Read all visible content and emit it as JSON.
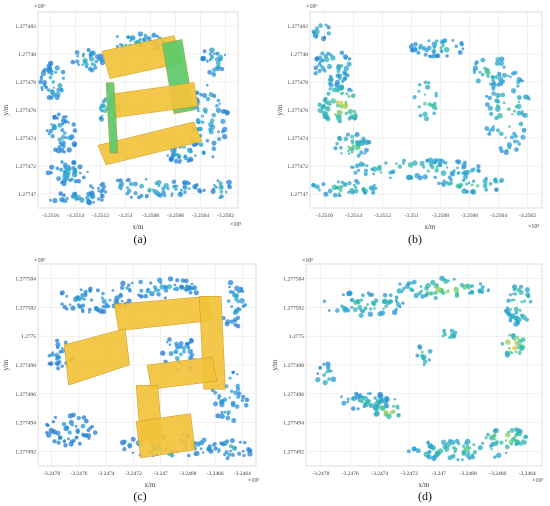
{
  "figure": {
    "panels": [
      {
        "caption": "(a)",
        "x_exp": "×10⁵",
        "y_exp": "×10⁶"
      },
      {
        "caption": "(b)",
        "x_exp": "×10⁵",
        "y_exp": "×10⁶"
      },
      {
        "caption": "(c)",
        "x_exp": "×10⁵",
        "y_exp": "×10⁶"
      },
      {
        "caption": "(d)",
        "x_exp": "×10⁵",
        "y_exp": "×10⁶"
      }
    ],
    "xlabel": "x/m",
    "ylabel": "y/m",
    "colors": {
      "low": "#2060d8",
      "mid": "#30c0a0",
      "high": "#f0c030",
      "roof": "#f2c23a",
      "wall": "#5cc96a"
    }
  },
  "chart_data": [
    {
      "type": "scatter",
      "panel": "(a)",
      "xlabel": "x/m",
      "ylabel": "y/m",
      "x_multiplier": "×10⁵",
      "y_multiplier": "×10⁶",
      "xticks": [
        "-3.2516",
        "-3.2514",
        "-3.2512",
        "-3.251",
        "-3.2508",
        "-3.2506",
        "-3.2504",
        "-3.2502"
      ],
      "yticks": [
        "1.277482",
        "1.27748",
        "1.277478",
        "1.277476",
        "1.277474",
        "1.277472",
        "1.27747"
      ],
      "xlim": [
        -3.25165,
        -3.25015
      ],
      "ylim": [
        1.2774685,
        1.2774825
      ],
      "grid": true,
      "content": "building point cloud with roofs"
    },
    {
      "type": "scatter",
      "panel": "(b)",
      "xlabel": "x/m",
      "ylabel": "y/m",
      "x_multiplier": "×10⁵",
      "y_multiplier": "×10⁶",
      "xticks": [
        "-3.2516",
        "-3.2514",
        "-3.2512",
        "-3.251",
        "-3.2508",
        "-3.2506",
        "-3.2504",
        "-3.2502"
      ],
      "yticks": [
        "1.277482",
        "1.27748",
        "1.277478",
        "1.277476",
        "1.277474",
        "1.277472",
        "1.27747"
      ],
      "xlim": [
        -3.25165,
        -3.25015
      ],
      "ylim": [
        1.2774685,
        1.2774825
      ],
      "grid": true,
      "content": "vegetation points only"
    },
    {
      "type": "scatter",
      "panel": "(c)",
      "xlabel": "x/m",
      "ylabel": "y/m",
      "x_multiplier": "×10⁵",
      "y_multiplier": "×10⁶",
      "xticks": [
        "-3.2478",
        "-3.2476",
        "-3.2474",
        "-3.2472",
        "-3.247",
        "-3.2468",
        "-3.2466",
        "-3.2464"
      ],
      "yticks": [
        "1.277504",
        "1.277502",
        "1.2775",
        "1.277498",
        "1.277496",
        "1.277494",
        "1.277492"
      ],
      "xlim": [
        -3.24785,
        -3.24635
      ],
      "ylim": [
        1.2774915,
        1.2775055
      ],
      "grid": true,
      "content": "building point cloud with roofs"
    },
    {
      "type": "scatter",
      "panel": "(d)",
      "xlabel": "x/m",
      "ylabel": "y/m",
      "x_multiplier": "×10⁵",
      "y_multiplier": "×10⁶",
      "xticks": [
        "-3.2478",
        "-3.2476",
        "-3.2474",
        "-3.2472",
        "-3.247",
        "-3.2468",
        "-3.2466",
        "-3.2464"
      ],
      "yticks": [
        "1.277504",
        "1.277502",
        "1.2775",
        "1.277498",
        "1.277496",
        "1.277494",
        "1.277492"
      ],
      "xlim": [
        -3.24785,
        -3.24635
      ],
      "ylim": [
        1.2774915,
        1.2775055
      ],
      "grid": true,
      "content": "vegetation points only"
    }
  ]
}
